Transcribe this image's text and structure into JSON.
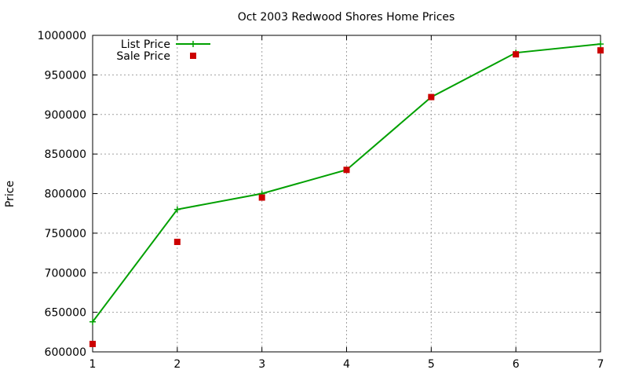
{
  "chart_data": {
    "type": "line",
    "title": "Oct 2003 Redwood Shores Home Prices",
    "xlabel": "",
    "ylabel": "Price",
    "xlim": [
      1,
      7
    ],
    "ylim": [
      600000,
      1000000
    ],
    "x_ticks": [
      "1",
      "2",
      "3",
      "4",
      "5",
      "6",
      "7"
    ],
    "y_ticks": [
      "600000",
      "650000",
      "700000",
      "750000",
      "800000",
      "850000",
      "900000",
      "950000",
      "1000000"
    ],
    "grid": true,
    "legend_position": "top-left",
    "x": [
      1,
      2,
      3,
      4,
      5,
      6,
      7
    ],
    "series": [
      {
        "name": "List Price",
        "style": "line-with-plus-markers",
        "color": "#00a000",
        "values": [
          638000,
          780000,
          800000,
          830000,
          922000,
          978000,
          989000
        ]
      },
      {
        "name": "Sale Price",
        "style": "square-points",
        "color": "#cc0000",
        "values": [
          610000,
          739000,
          795000,
          830000,
          922000,
          976000,
          981000
        ]
      }
    ]
  }
}
